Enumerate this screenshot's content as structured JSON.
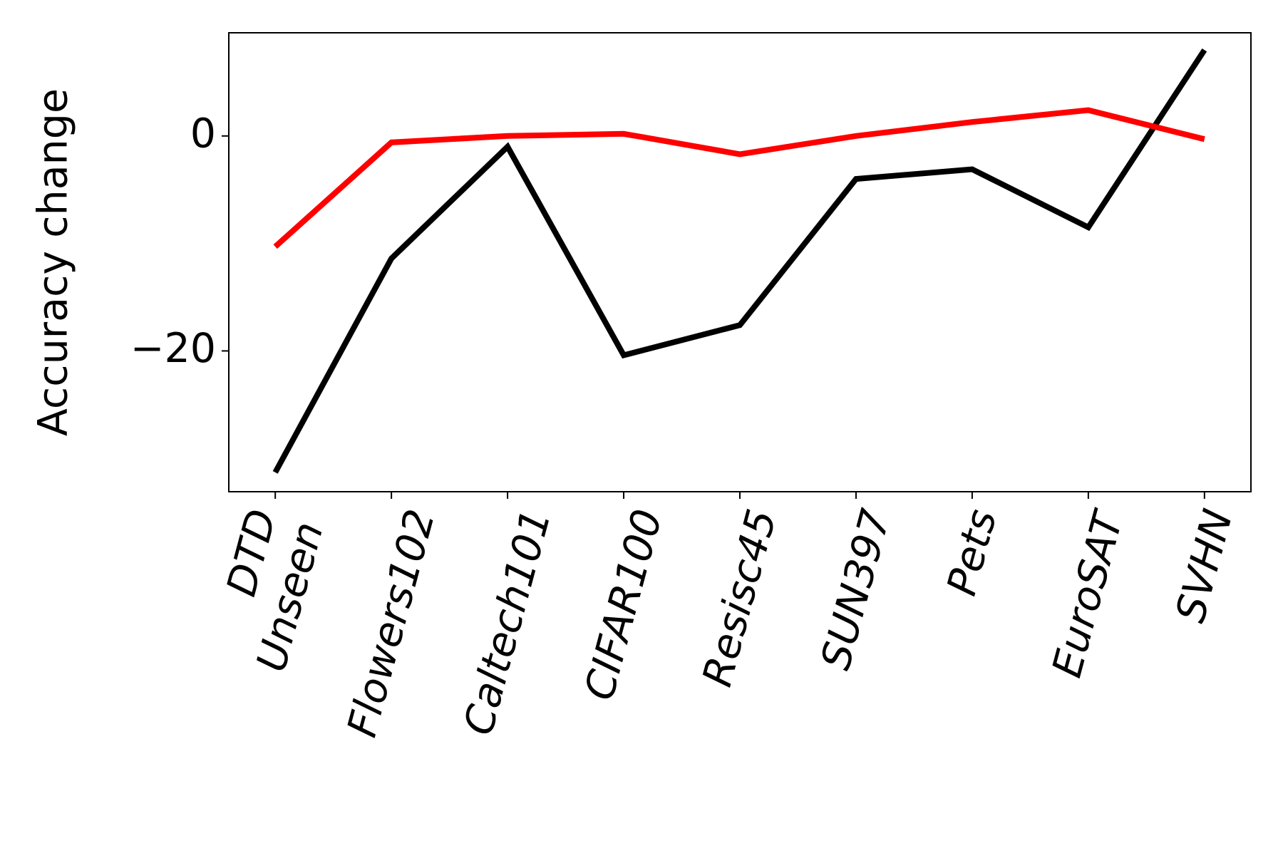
{
  "chart_data": {
    "type": "line",
    "categories": [
      [
        "DTD",
        "Unseen"
      ],
      "Flowers102",
      "Caltech101",
      "CIFAR100",
      "Resisc45",
      "SUN397",
      "Pets",
      "EuroSAT",
      "SVHN"
    ],
    "series": [
      {
        "color": "#000000",
        "values": [
          -31.3,
          -11.4,
          -1.0,
          -20.4,
          -17.6,
          -4.0,
          -3.1,
          -8.5,
          8.0
        ]
      },
      {
        "color": "#ff0000",
        "values": [
          -10.3,
          -0.6,
          0.0,
          0.2,
          -1.7,
          0.0,
          1.3,
          2.4,
          -0.3
        ]
      }
    ],
    "y_label": "Accuracy change",
    "ylim": [
      -33.1,
      9.6
    ],
    "yticks": [
      {
        "value": -20,
        "label": "−20"
      },
      0
    ],
    "grid": false
  }
}
